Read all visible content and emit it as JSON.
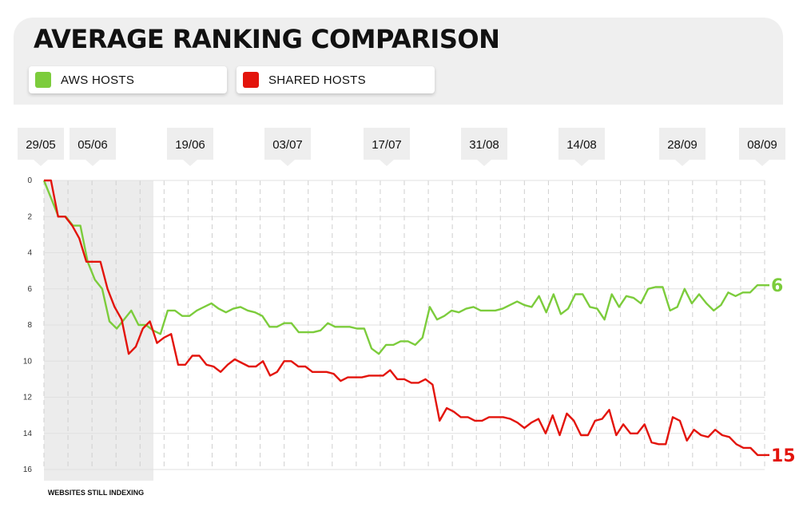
{
  "chart_data": {
    "type": "line",
    "title": "AVERAGE RANKING COMPARISON",
    "y_inverted": true,
    "ylim": [
      0,
      16
    ],
    "y_ticks": [
      "0",
      "2",
      "4",
      "6",
      "8",
      "10",
      "12",
      "14",
      "16"
    ],
    "date_labels": [
      "29/05",
      "05/06",
      "19/06",
      "03/07",
      "17/07",
      "31/08",
      "14/08",
      "28/09",
      "08/09"
    ],
    "shaded_region_label": "WEBSITES STILL INDEXING",
    "grid": true,
    "legend_position": "top-left",
    "series": [
      {
        "name": "AWS HOSTS",
        "color": "#7ccc3c",
        "end_label": "6",
        "values": [
          0,
          1,
          2,
          2,
          2.5,
          2.5,
          4.5,
          5.5,
          6,
          7.8,
          8.2,
          7.7,
          7.2,
          8,
          8,
          8.3,
          8.5,
          7.2,
          7.2,
          7.5,
          7.5,
          7.2,
          7,
          6.8,
          7.1,
          7.3,
          7.1,
          7,
          7.2,
          7.3,
          7.5,
          8.1,
          8.1,
          7.9,
          7.9,
          8.4,
          8.4,
          8.4,
          8.3,
          7.9,
          8.1,
          8.1,
          8.1,
          8.2,
          8.2,
          9.3,
          9.6,
          9.1,
          9.1,
          8.9,
          8.9,
          9.1,
          8.7,
          7,
          7.7,
          7.5,
          7.2,
          7.3,
          7.1,
          7,
          7.2,
          7.2,
          7.2,
          7.1,
          6.9,
          6.7,
          6.9,
          7,
          6.4,
          7.3,
          6.3,
          7.4,
          7.1,
          6.3,
          6.3,
          7,
          7.1,
          7.7,
          6.3,
          7,
          6.4,
          6.5,
          6.8,
          6,
          5.9,
          5.9,
          7.2,
          7,
          6,
          6.8,
          6.3,
          6.8,
          7.2,
          6.9,
          6.2,
          6.4,
          6.2,
          6.2,
          5.8,
          5.8
        ]
      },
      {
        "name": "SHARED HOSTS",
        "color": "#e3140c",
        "end_label": "15",
        "values": [
          0,
          0,
          2,
          2,
          2.5,
          3.2,
          4.5,
          4.5,
          4.5,
          6,
          7,
          7.7,
          9.6,
          9.2,
          8.2,
          7.8,
          9,
          8.7,
          8.5,
          10.2,
          10.2,
          9.7,
          9.7,
          10.2,
          10.3,
          10.6,
          10.2,
          9.9,
          10.1,
          10.3,
          10.3,
          10,
          10.8,
          10.6,
          10,
          10,
          10.3,
          10.3,
          10.6,
          10.6,
          10.6,
          10.7,
          11.1,
          10.9,
          10.9,
          10.9,
          10.8,
          10.8,
          10.8,
          10.5,
          11,
          11,
          11.2,
          11.2,
          11,
          11.3,
          13.3,
          12.6,
          12.8,
          13.1,
          13.1,
          13.3,
          13.3,
          13.1,
          13.1,
          13.1,
          13.2,
          13.4,
          13.7,
          13.4,
          13.2,
          14,
          13,
          14.1,
          12.9,
          13.3,
          14.1,
          14.1,
          13.3,
          13.2,
          12.7,
          14.1,
          13.5,
          14,
          14,
          13.5,
          14.5,
          14.6,
          14.6,
          13.1,
          13.3,
          14.4,
          13.8,
          14.1,
          14.2,
          13.8,
          14.1,
          14.2,
          14.6,
          14.8,
          14.8,
          15.2,
          15.2
        ]
      }
    ]
  }
}
